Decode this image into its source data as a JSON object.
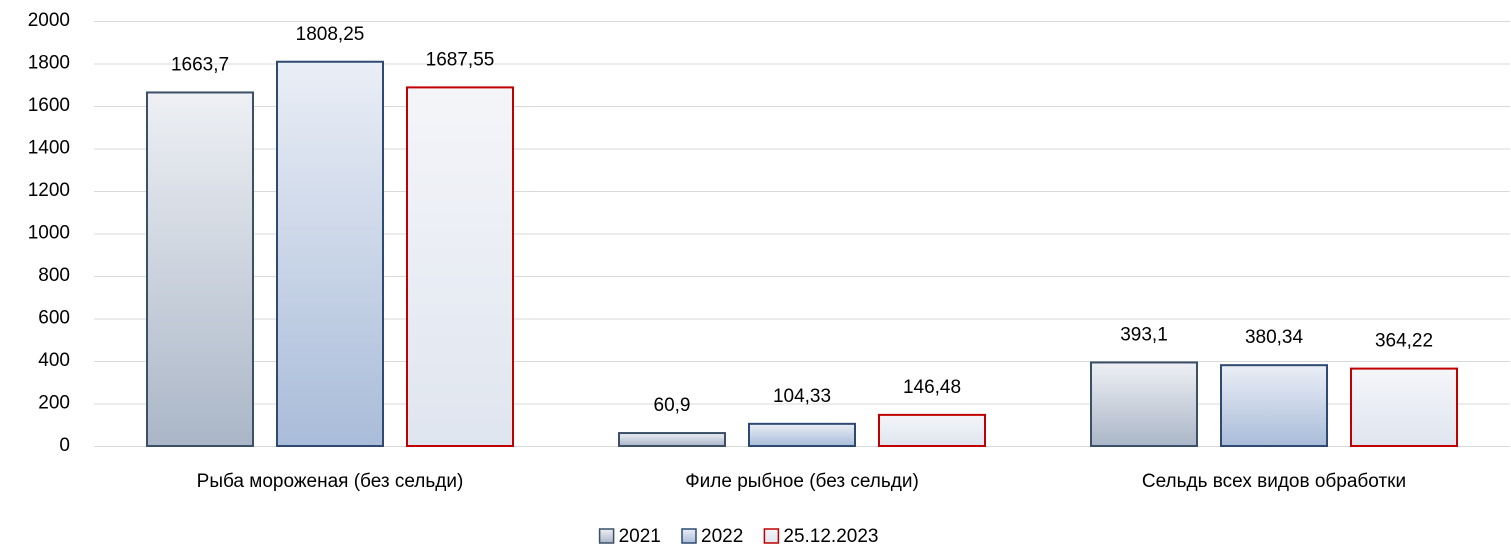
{
  "chart_data": {
    "type": "bar",
    "categories": [
      "Рыба мороженая (без сельди)",
      "Филе рыбное (без сельди)",
      "Сельдь всех видов обработки"
    ],
    "series": [
      {
        "name": "2021",
        "color": "#3b4f66",
        "values": [
          1663.7,
          60.9,
          393.1
        ],
        "value_labels": [
          "1663,7",
          "60,9",
          "393,1"
        ]
      },
      {
        "name": "2022",
        "color": "#2e4a72",
        "values": [
          1808.25,
          104.33,
          380.34
        ],
        "value_labels": [
          "1808,25",
          "104,33",
          "380,34"
        ]
      },
      {
        "name": "25.12.2023",
        "color": "#c00000",
        "values": [
          1687.55,
          146.48,
          364.22
        ],
        "value_labels": [
          "1687,55",
          "146,48",
          "364,22"
        ]
      }
    ],
    "ylim": [
      0,
      2000
    ],
    "yticks": [
      0,
      200,
      400,
      600,
      800,
      1000,
      1200,
      1400,
      1600,
      1800,
      2000
    ],
    "grid": true,
    "legend": "bottom"
  }
}
